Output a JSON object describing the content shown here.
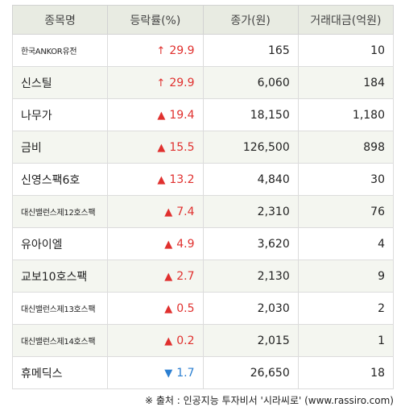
{
  "headers": {
    "name": "종목명",
    "rate": "등락률(%)",
    "price": "종가(원)",
    "volume": "거래대금(억원)"
  },
  "rows": [
    {
      "name": "한국ANKOR유전",
      "name_size": "sm",
      "arrow": "↑",
      "direction": "up",
      "rate": "29.9",
      "price": "165",
      "volume": "10"
    },
    {
      "name": "신스틸",
      "name_size": "lg",
      "arrow": "↑",
      "direction": "up",
      "rate": "29.9",
      "price": "6,060",
      "volume": "184"
    },
    {
      "name": "나무가",
      "name_size": "lg",
      "arrow": "▲",
      "direction": "up",
      "rate": "19.4",
      "price": "18,150",
      "volume": "1,180"
    },
    {
      "name": "금비",
      "name_size": "lg",
      "arrow": "▲",
      "direction": "up",
      "rate": "15.5",
      "price": "126,500",
      "volume": "898"
    },
    {
      "name": "신영스팩6호",
      "name_size": "lg",
      "arrow": "▲",
      "direction": "up",
      "rate": "13.2",
      "price": "4,840",
      "volume": "30"
    },
    {
      "name": "대신밸런스제12호스팩",
      "name_size": "sm",
      "arrow": "▲",
      "direction": "up",
      "rate": "7.4",
      "price": "2,310",
      "volume": "76"
    },
    {
      "name": "유아이엘",
      "name_size": "lg",
      "arrow": "▲",
      "direction": "up",
      "rate": "4.9",
      "price": "3,620",
      "volume": "4"
    },
    {
      "name": "교보10호스팩",
      "name_size": "lg",
      "arrow": "▲",
      "direction": "up",
      "rate": "2.7",
      "price": "2,130",
      "volume": "9"
    },
    {
      "name": "대신밸런스제13호스팩",
      "name_size": "sm",
      "arrow": "▲",
      "direction": "up",
      "rate": "0.5",
      "price": "2,030",
      "volume": "2"
    },
    {
      "name": "대신밸런스제14호스팩",
      "name_size": "sm",
      "arrow": "▲",
      "direction": "up",
      "rate": "0.2",
      "price": "2,015",
      "volume": "1"
    },
    {
      "name": "휴메딕스",
      "name_size": "lg",
      "arrow": "▼",
      "direction": "down",
      "rate": "1.7",
      "price": "26,650",
      "volume": "18"
    }
  ],
  "footer": {
    "source": "※ 출처 : 인공지능 투자비서 '시라씨로' (www.rassiro.com)"
  },
  "colors": {
    "up": "#e0302e",
    "down": "#2b7fd1",
    "header_bg": "#e8ebe2",
    "stripe_bg": "#f4f6f0"
  }
}
